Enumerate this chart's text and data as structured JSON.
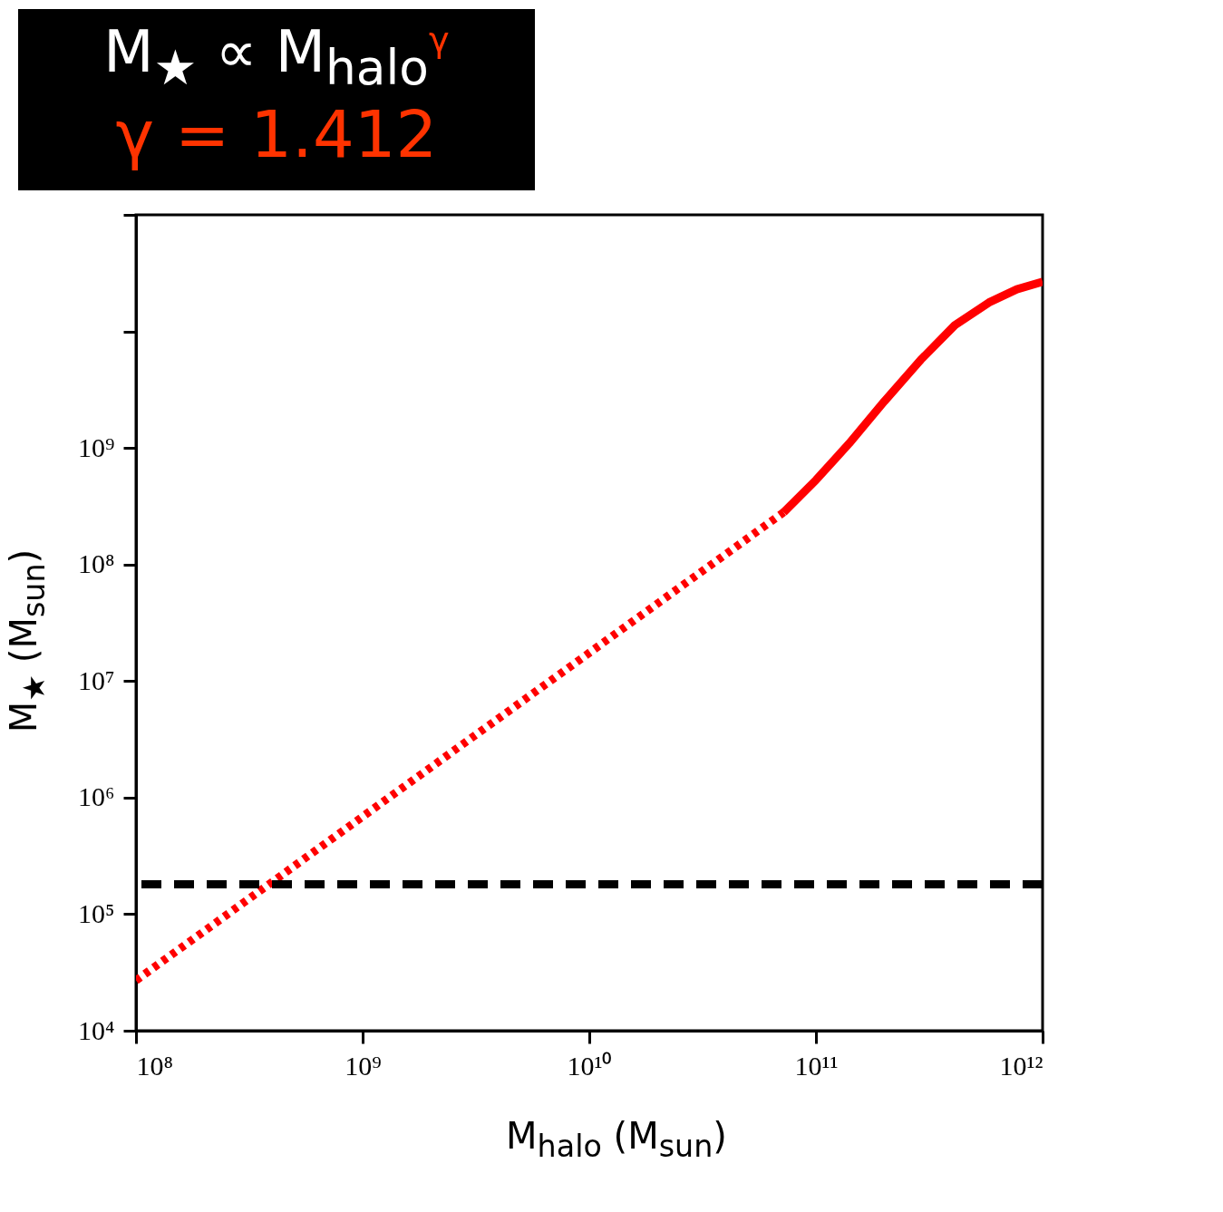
{
  "chart_data": {
    "type": "line",
    "title": "M$_{★}$ ∝ M$_{halo}$$^{γ}$",
    "subtitle": "γ = 1.412",
    "xlabel": "M$_{halo}$ (M$_{sun}$)",
    "ylabel": "M$_{★}$ (M$_{sun}$)",
    "series": [
      {
        "color": "#ff0000",
        "line_style": "dotted",
        "x": [
          100000000.0,
          72000000000.0
        ],
        "values": [
          27000.0,
          280000000.0
        ]
      },
      {
        "color": "#ff0000",
        "line_style": "solid",
        "x": [
          72000000000.0,
          100000000000.0,
          140000000000.0,
          200000000000.0,
          290000000000.0,
          410000000000.0,
          580000000000.0,
          770000000000.0,
          1000000000000.0
        ],
        "values": [
          280000000.0,
          530000000.0,
          1090000000.0,
          2500000000.0,
          5700000000.0,
          11300000000.0,
          17700000000.0,
          23000000000.0,
          26700000000.0
        ]
      }
    ],
    "ref_lines": [
      {
        "axis": "y",
        "value": 180000.0,
        "color": "#000000",
        "line_style": "dashed"
      }
    ],
    "log": "xy",
    "grid": false,
    "xlim": [
      100000000.0,
      1000000000000.0
    ],
    "ylim": [
      10000.0,
      100000000000.0
    ],
    "xticks": [
      {
        "value": 100000000.0,
        "label": "10⁸"
      },
      {
        "value": 1000000000.0,
        "label": "10⁹"
      },
      {
        "value": 10000000000.0,
        "label": "10¹⁰"
      },
      {
        "value": 100000000000.0,
        "label": "10¹¹"
      },
      {
        "value": 1000000000000.0,
        "label": "10¹²"
      }
    ],
    "yticks": [
      {
        "value": 10000.0,
        "label": "10⁴"
      },
      {
        "value": 100000.0,
        "label": "10⁵"
      },
      {
        "value": 1000000.0,
        "label": "10⁶"
      },
      {
        "value": 10000000.0,
        "label": "10⁷"
      },
      {
        "value": 100000000.0,
        "label": "10⁸"
      },
      {
        "value": 1000000000.0,
        "label": "10⁹"
      },
      {
        "value": 10000000000.0,
        "label": null
      },
      {
        "value": 100000000000.0,
        "label": null
      }
    ]
  }
}
